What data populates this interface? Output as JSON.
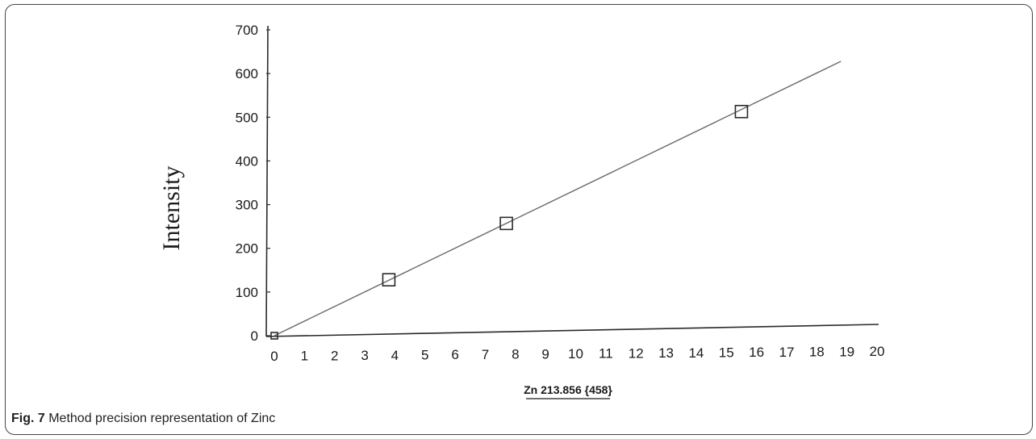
{
  "chart_data": {
    "type": "scatter",
    "xlabel": "Zn 213.856 {458}",
    "ylabel": "Intensity",
    "xlim": [
      0,
      20
    ],
    "ylim": [
      0,
      700
    ],
    "x_ticks": [
      "0",
      "1",
      "2",
      "3",
      "4",
      "5",
      "6",
      "7",
      "8",
      "9",
      "10",
      "11",
      "12",
      "13",
      "14",
      "15",
      "16",
      "17",
      "18",
      "19",
      "20"
    ],
    "y_ticks": [
      "0",
      "100",
      "200",
      "300",
      "400",
      "500",
      "600",
      "700"
    ],
    "points": [
      {
        "x": 0,
        "y": 0
      },
      {
        "x": 3.8,
        "y": 128
      },
      {
        "x": 7.7,
        "y": 257
      },
      {
        "x": 15.5,
        "y": 513
      }
    ],
    "fit_line": {
      "x": [
        0,
        18.8
      ],
      "y": [
        0,
        628
      ]
    },
    "marker": "open-square",
    "grid": false,
    "colors": {
      "line": "#6a6a6a",
      "marker": "#2a2a2a",
      "axis": "#2a2a2a"
    }
  },
  "caption": {
    "label": "Fig. 7",
    "text": " Method precision representation of Zinc"
  }
}
